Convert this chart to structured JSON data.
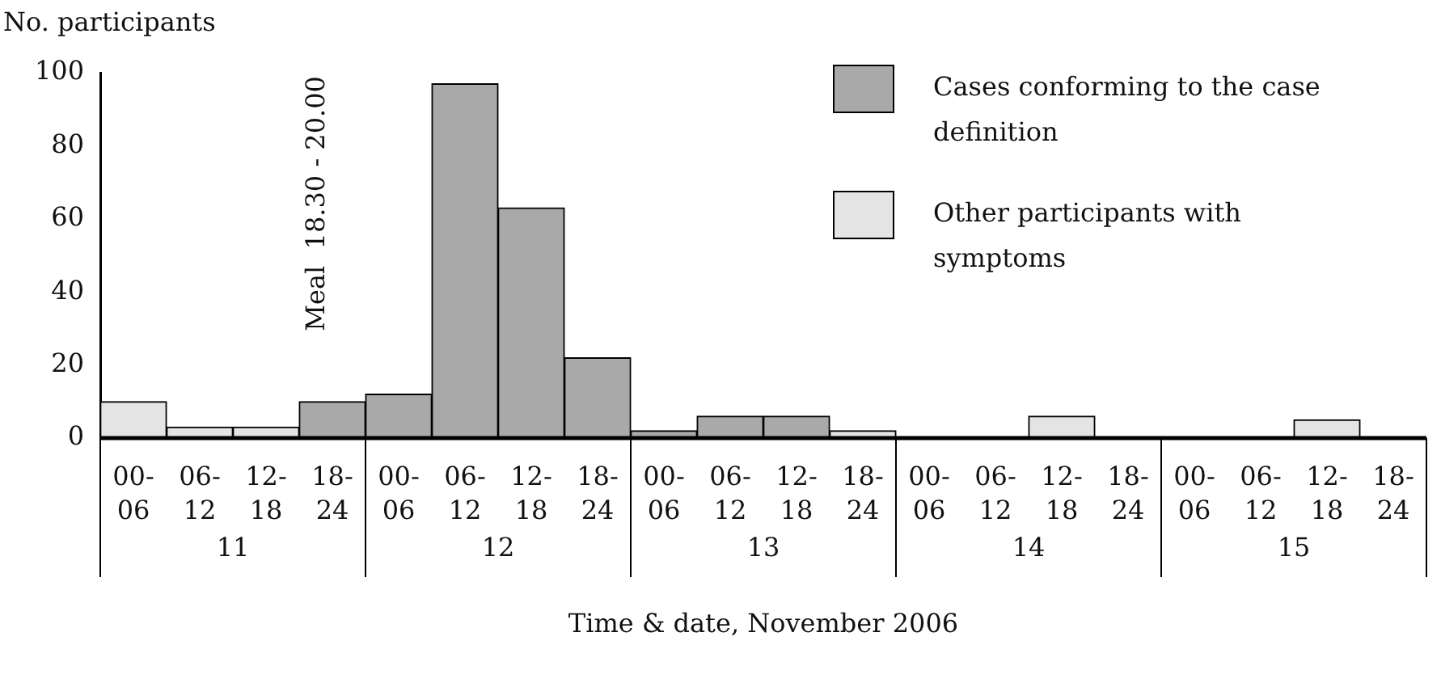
{
  "chart_data": {
    "type": "bar",
    "stacked": true,
    "ylabel": "No. participants",
    "xlabel": "Time & date, November 2006",
    "categories": [
      "00-06",
      "06-12",
      "12-18",
      "18-24",
      "00-06",
      "06-12",
      "12-18",
      "18-24",
      "00-06",
      "06-12",
      "12-18",
      "18-24",
      "00-06",
      "06-12",
      "12-18",
      "18-24",
      "00-06",
      "06-12",
      "12-18",
      "18-24"
    ],
    "series": [
      {
        "name": "Cases conforming to the case definition",
        "color": "#a9a9a9",
        "values": [
          null,
          null,
          null,
          10,
          12,
          97,
          63,
          22,
          2,
          6,
          6,
          null,
          null,
          null,
          null,
          null,
          null,
          null,
          null,
          null
        ]
      },
      {
        "name": "Other participants with symptoms",
        "color": "#e4e4e4",
        "values": [
          10,
          3,
          3,
          null,
          null,
          null,
          null,
          null,
          null,
          null,
          null,
          2,
          null,
          null,
          6,
          null,
          null,
          null,
          5,
          null
        ]
      }
    ],
    "ylim": [
      0,
      100
    ],
    "yticks": [
      0,
      20,
      40,
      60,
      80,
      100
    ],
    "grid": false,
    "legend": "top right",
    "annotations": [
      "Meal  18.30 - 20.00",
      "11",
      "12",
      "13",
      "14",
      "15"
    ]
  }
}
